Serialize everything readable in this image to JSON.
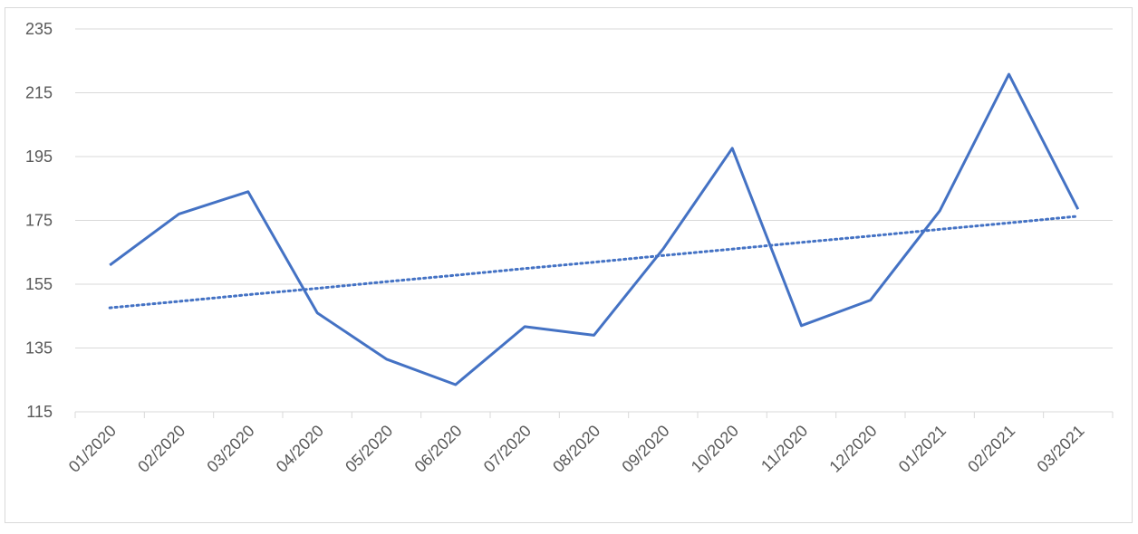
{
  "chart_data": {
    "type": "line",
    "categories": [
      "01/2020",
      "02/2020",
      "03/2020",
      "04/2020",
      "05/2020",
      "06/2020",
      "07/2020",
      "08/2020",
      "09/2020",
      "10/2020",
      "11/2020",
      "12/2020",
      "01/2021",
      "02/2021",
      "03/2021"
    ],
    "series": [
      {
        "color": "#4472c4",
        "line_style": "solid",
        "values": [
          161,
          177,
          184,
          146,
          131.5,
          123.5,
          141.7,
          139,
          166,
          197.6,
          142,
          150,
          178,
          220.8,
          178.5
        ]
      },
      {
        "color": "#4472c4",
        "line_style": "dotted",
        "values": [
          147.6,
          149.6,
          151.7,
          153.7,
          155.8,
          157.8,
          159.9,
          161.9,
          164.0,
          166.0,
          168.1,
          170.1,
          172.2,
          174.2,
          176.3
        ]
      }
    ],
    "ylim": [
      115,
      235
    ],
    "yticks": [
      115,
      135,
      155,
      175,
      195,
      215,
      235
    ],
    "grid": true
  }
}
